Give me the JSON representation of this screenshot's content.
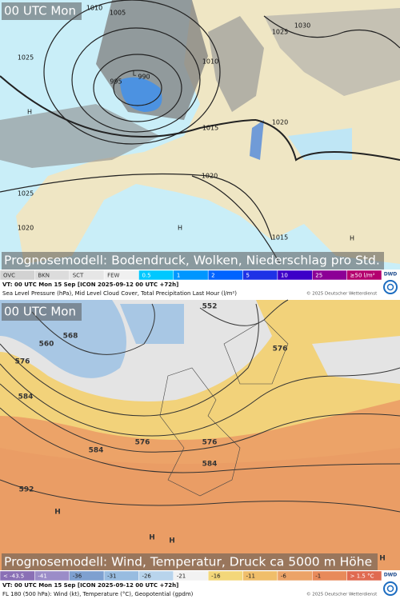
{
  "top_map": {
    "time_label": "00 UTC Mon",
    "isobar_labels": [
      "1010",
      "1005",
      "1025",
      "995",
      "990",
      "1010",
      "1015",
      "1020",
      "1025",
      "1030",
      "1020",
      "1025",
      "1020",
      "1015",
      "H",
      "H",
      "H",
      "L"
    ],
    "caption": "Prognosemodell: Bodendruck, Wolken, Niederschlag pro Std.",
    "legend": [
      "OVC",
      "BKN",
      "SCT",
      "FEW",
      "0.5",
      "1",
      "2",
      "5",
      "10",
      "25",
      "≥50 l/m²"
    ],
    "logo": "DWD",
    "valid_time": "VT: 00 UTC Mon  15 Sep [ICON 2025-09-12 00 UTC +72h]",
    "description": "Sea Level Pressure (hPa), Mid Level Cloud Cover, Total Precipitation Last Hour (l/m²)",
    "copyright": "© 2025 Deutscher Wetterdienst"
  },
  "bottom_map": {
    "time_label": "00 UTC Mon",
    "contour_labels": [
      "552",
      "560",
      "568",
      "576",
      "584",
      "592",
      "576",
      "584",
      "576",
      "584",
      "576",
      "H",
      "H",
      "H",
      "H"
    ],
    "caption": "Prognosemodell: Wind, Temperatur, Druck ca 5000 m Höhe",
    "legend": [
      "< -43.5",
      "-41",
      "-36",
      "-31",
      "-26",
      "-21",
      "-16",
      "-11",
      "-6",
      "-1",
      "> 1.5 °C"
    ],
    "logo": "DWD",
    "valid_time": "VT: 00 UTC Mon  15 Sep [ICON 2025-09-12 00 UTC +72h]",
    "description": "FL 180 (500 hPa): Wind (kt), Temperature (°C), Geopotential (gpdm)",
    "copyright": "© 2025 Deutscher Wetterdienst"
  }
}
